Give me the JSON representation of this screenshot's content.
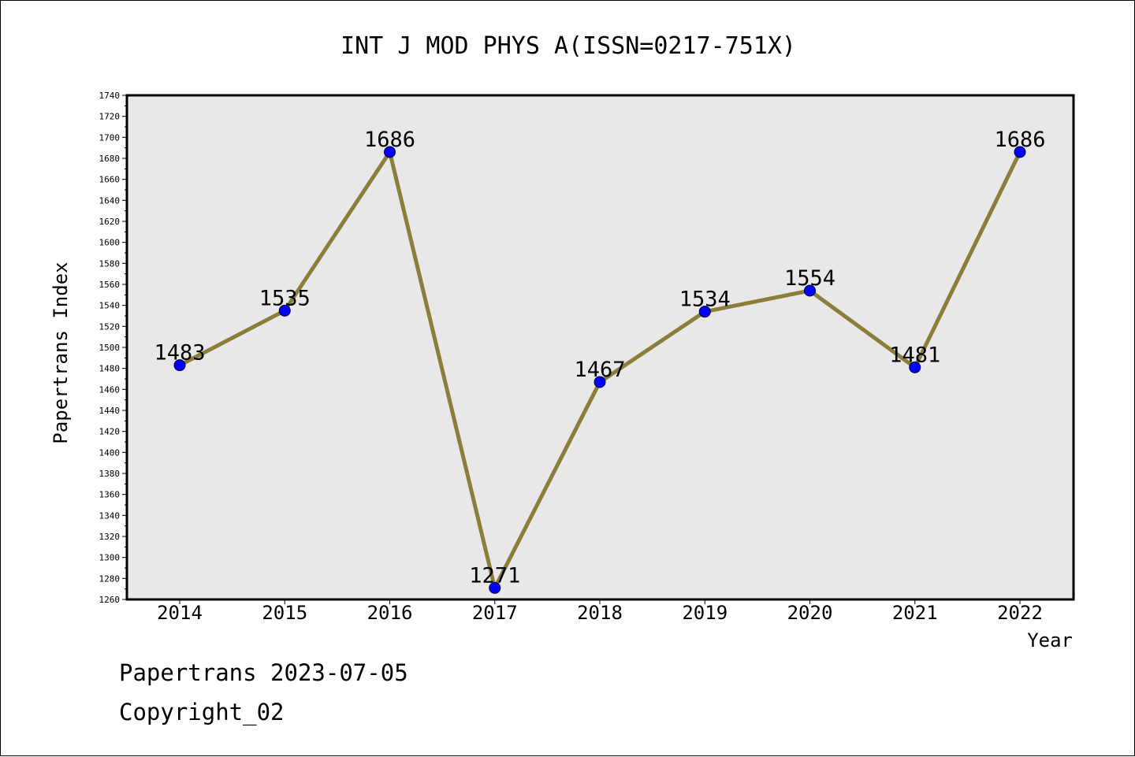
{
  "chart_data": {
    "type": "line",
    "title": "INT J MOD PHYS A(ISSN=0217-751X)",
    "xlabel": "Year",
    "ylabel": "Papertrans Index",
    "categories": [
      "2014",
      "2015",
      "2016",
      "2017",
      "2018",
      "2019",
      "2020",
      "2021",
      "2022"
    ],
    "series": [
      {
        "values": [
          1483,
          1535,
          1686,
          1271,
          1467,
          1534,
          1554,
          1481,
          1686
        ]
      }
    ],
    "ylim": [
      1260,
      1740
    ],
    "y_ticks": [
      1260,
      1280,
      1300,
      1320,
      1340,
      1360,
      1380,
      1400,
      1420,
      1440,
      1460,
      1480,
      1500,
      1520,
      1540,
      1560,
      1580,
      1600,
      1620,
      1640,
      1660,
      1680,
      1700,
      1720,
      1740
    ],
    "grid": false,
    "legend": "none",
    "line_color": "#8b7d3a",
    "marker_color": "#0000ff",
    "plot_background": "#e8e8e8"
  },
  "footer": {
    "date_line": "Papertrans 2023-07-05",
    "copyright": "Copyright_02"
  }
}
